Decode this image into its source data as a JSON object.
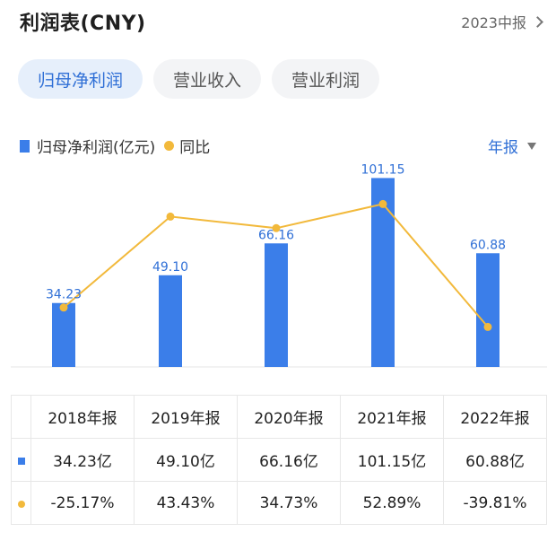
{
  "header": {
    "title": "利润表(CNY)",
    "period": "2023中报"
  },
  "tabs": [
    {
      "label": "归母净利润",
      "active": true
    },
    {
      "label": "营业收入",
      "active": false
    },
    {
      "label": "营业利润",
      "active": false
    }
  ],
  "legend": {
    "bar_label": "归母净利润(亿元)",
    "line_label": "同比"
  },
  "frequency": "年报",
  "colors": {
    "bar": "#3b7ee9",
    "line": "#f2b93b",
    "positive": "#d9534f",
    "negative": "#2e9e6b"
  },
  "chart_data": {
    "type": "bar",
    "categories": [
      "2018年报",
      "2019年报",
      "2020年报",
      "2021年报",
      "2022年报"
    ],
    "series": [
      {
        "name": "归母净利润(亿元)",
        "type": "bar",
        "values": [
          34.23,
          49.1,
          66.16,
          101.15,
          60.88
        ]
      },
      {
        "name": "同比",
        "type": "line",
        "values": [
          -25.17,
          43.43,
          34.73,
          52.89,
          -39.81
        ]
      }
    ],
    "ylim": [
      0,
      110
    ],
    "y2lim": [
      -70,
      85
    ]
  },
  "table": {
    "headers": [
      "2018年报",
      "2019年报",
      "2020年报",
      "2021年报",
      "2022年报"
    ],
    "values": [
      "34.23亿",
      "49.10亿",
      "66.16亿",
      "101.15亿",
      "60.88亿"
    ],
    "growth": [
      "-25.17%",
      "43.43%",
      "34.73%",
      "52.89%",
      "-39.81%"
    ]
  }
}
